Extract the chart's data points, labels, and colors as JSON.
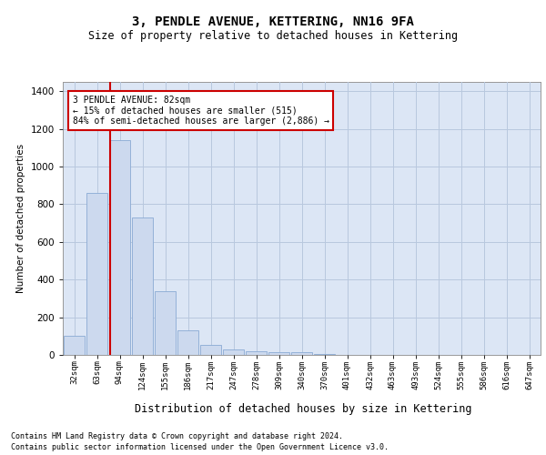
{
  "title": "3, PENDLE AVENUE, KETTERING, NN16 9FA",
  "subtitle": "Size of property relative to detached houses in Kettering",
  "xlabel": "Distribution of detached houses by size in Kettering",
  "ylabel": "Number of detached properties",
  "footnote1": "Contains HM Land Registry data © Crown copyright and database right 2024.",
  "footnote2": "Contains public sector information licensed under the Open Government Licence v3.0.",
  "annotation_line1": "3 PENDLE AVENUE: 82sqm",
  "annotation_line2": "← 15% of detached houses are smaller (515)",
  "annotation_line3": "84% of semi-detached houses are larger (2,886) →",
  "bar_color": "#ccd9ee",
  "bar_edge_color": "#8aaad4",
  "vline_color": "#cc0000",
  "annotation_box_edge": "#cc0000",
  "annotation_box_face": "#ffffff",
  "background_color": "#ffffff",
  "plot_bg_color": "#dce6f5",
  "grid_color": "#b8c8de",
  "categories": [
    "32sqm",
    "63sqm",
    "94sqm",
    "124sqm",
    "155sqm",
    "186sqm",
    "217sqm",
    "247sqm",
    "278sqm",
    "309sqm",
    "340sqm",
    "370sqm",
    "401sqm",
    "432sqm",
    "463sqm",
    "493sqm",
    "524sqm",
    "555sqm",
    "586sqm",
    "616sqm",
    "647sqm"
  ],
  "values": [
    100,
    860,
    1140,
    730,
    340,
    130,
    55,
    30,
    20,
    15,
    15,
    5,
    0,
    0,
    0,
    0,
    0,
    0,
    0,
    0,
    0
  ],
  "vline_x": 1.58,
  "ylim": [
    0,
    1450
  ],
  "yticks": [
    0,
    200,
    400,
    600,
    800,
    1000,
    1200,
    1400
  ],
  "title_fontsize": 10,
  "subtitle_fontsize": 8.5,
  "xlabel_fontsize": 8.5,
  "ylabel_fontsize": 7.5,
  "xtick_fontsize": 6.5,
  "ytick_fontsize": 7.5,
  "annotation_fontsize": 7,
  "footnote_fontsize": 6
}
